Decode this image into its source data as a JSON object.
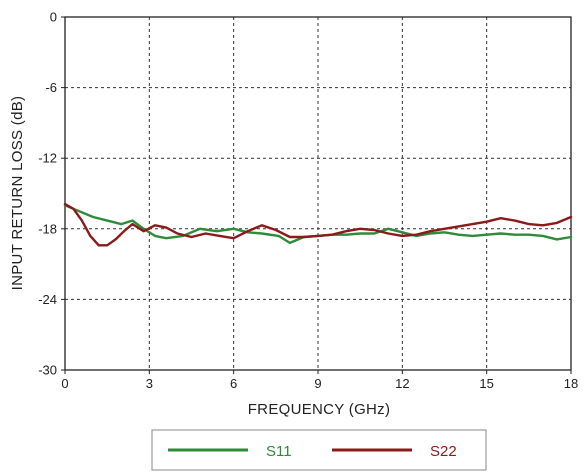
{
  "chart_data": {
    "type": "line",
    "xlabel": "FREQUENCY (GHz)",
    "ylabel": "INPUT RETURN LOSS (dB)",
    "xlim": [
      0,
      18
    ],
    "ylim": [
      -30,
      0
    ],
    "xticks": [
      0,
      3,
      6,
      9,
      12,
      15,
      18
    ],
    "yticks": [
      0,
      -6,
      -12,
      -18,
      -24,
      -30
    ],
    "grid": true,
    "grid_style": "dashed",
    "legend_position": "bottom",
    "series": [
      {
        "name": "S11",
        "color": "#2e8b3a",
        "points": [
          [
            0,
            -16.0
          ],
          [
            0.5,
            -16.5
          ],
          [
            1,
            -17.0
          ],
          [
            1.5,
            -17.3
          ],
          [
            2,
            -17.6
          ],
          [
            2.4,
            -17.3
          ],
          [
            2.8,
            -18.0
          ],
          [
            3.2,
            -18.6
          ],
          [
            3.6,
            -18.8
          ],
          [
            4.2,
            -18.6
          ],
          [
            4.8,
            -18.0
          ],
          [
            5.4,
            -18.2
          ],
          [
            6.0,
            -18.0
          ],
          [
            6.5,
            -18.3
          ],
          [
            7.0,
            -18.4
          ],
          [
            7.6,
            -18.6
          ],
          [
            8.0,
            -19.2
          ],
          [
            8.5,
            -18.7
          ],
          [
            9.0,
            -18.6
          ],
          [
            9.5,
            -18.5
          ],
          [
            10.0,
            -18.5
          ],
          [
            10.5,
            -18.4
          ],
          [
            11.0,
            -18.4
          ],
          [
            11.5,
            -18.0
          ],
          [
            12.0,
            -18.3
          ],
          [
            12.5,
            -18.6
          ],
          [
            13.0,
            -18.4
          ],
          [
            13.5,
            -18.3
          ],
          [
            14.0,
            -18.5
          ],
          [
            14.5,
            -18.6
          ],
          [
            15.0,
            -18.5
          ],
          [
            15.5,
            -18.4
          ],
          [
            16.0,
            -18.5
          ],
          [
            16.5,
            -18.5
          ],
          [
            17.0,
            -18.6
          ],
          [
            17.5,
            -18.9
          ],
          [
            18.0,
            -18.7
          ]
        ]
      },
      {
        "name": "S22",
        "color": "#8b1a1a",
        "points": [
          [
            0,
            -15.9
          ],
          [
            0.3,
            -16.3
          ],
          [
            0.6,
            -17.3
          ],
          [
            0.9,
            -18.6
          ],
          [
            1.2,
            -19.4
          ],
          [
            1.5,
            -19.4
          ],
          [
            1.8,
            -18.9
          ],
          [
            2.1,
            -18.2
          ],
          [
            2.4,
            -17.6
          ],
          [
            2.8,
            -18.2
          ],
          [
            3.2,
            -17.7
          ],
          [
            3.6,
            -17.9
          ],
          [
            4.0,
            -18.4
          ],
          [
            4.5,
            -18.7
          ],
          [
            5.0,
            -18.4
          ],
          [
            5.5,
            -18.6
          ],
          [
            6.0,
            -18.8
          ],
          [
            6.5,
            -18.2
          ],
          [
            7.0,
            -17.7
          ],
          [
            7.5,
            -18.1
          ],
          [
            8.0,
            -18.7
          ],
          [
            8.5,
            -18.7
          ],
          [
            9.0,
            -18.6
          ],
          [
            9.5,
            -18.5
          ],
          [
            10.0,
            -18.2
          ],
          [
            10.5,
            -18.0
          ],
          [
            11.0,
            -18.1
          ],
          [
            11.5,
            -18.4
          ],
          [
            12.0,
            -18.6
          ],
          [
            12.5,
            -18.5
          ],
          [
            13.0,
            -18.2
          ],
          [
            13.5,
            -18.0
          ],
          [
            14.0,
            -17.8
          ],
          [
            14.5,
            -17.6
          ],
          [
            15.0,
            -17.4
          ],
          [
            15.5,
            -17.1
          ],
          [
            16.0,
            -17.3
          ],
          [
            16.5,
            -17.6
          ],
          [
            17.0,
            -17.7
          ],
          [
            17.5,
            -17.5
          ],
          [
            18.0,
            -17.0
          ]
        ]
      }
    ]
  }
}
